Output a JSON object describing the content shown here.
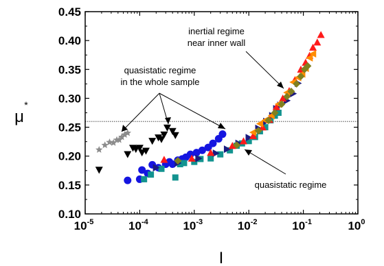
{
  "chart_data": {
    "type": "scatter",
    "title": "",
    "xlabel": "I",
    "ylabel_base": "μ",
    "ylabel_sup": "*",
    "x_scale": "log",
    "xlim": [
      1e-05,
      1
    ],
    "ylim": [
      0.1,
      0.45
    ],
    "x_ticks": [
      {
        "base": "10",
        "exp": "-5",
        "value": 1e-05
      },
      {
        "base": "10",
        "exp": "-4",
        "value": 0.0001
      },
      {
        "base": "10",
        "exp": "-3",
        "value": 0.001
      },
      {
        "base": "10",
        "exp": "-2",
        "value": 0.01
      },
      {
        "base": "10",
        "exp": "-1",
        "value": 0.1
      },
      {
        "base": "10",
        "exp": "0",
        "value": 1
      }
    ],
    "y_ticks": [
      "0.10",
      "0.15",
      "0.20",
      "0.25",
      "0.30",
      "0.35",
      "0.40",
      "0.45"
    ],
    "reference_line": {
      "y": 0.26,
      "style": "dotted"
    },
    "grid": false,
    "colors": {
      "gray": "#8c8c8c",
      "black": "#000000",
      "blue": "#1515e0",
      "teal": "#13938f",
      "navy": "#1a1a80",
      "red": "#ff1a1a",
      "orange": "#ff8c00",
      "olive": "#808020"
    },
    "annotations": [
      {
        "id": "quasistatic-whole",
        "lines": [
          "quasistatic regime",
          "in the whole sample"
        ]
      },
      {
        "id": "inertial",
        "lines": [
          "inertial regime",
          "near inner wall"
        ]
      },
      {
        "id": "quasistatic",
        "lines": [
          "quasistatic regime"
        ]
      }
    ],
    "series": [
      {
        "marker": "star",
        "color": "gray",
        "points": [
          [
            1.8e-05,
            0.211
          ],
          [
            2.3e-05,
            0.219
          ],
          [
            2.8e-05,
            0.224
          ],
          [
            3.3e-05,
            0.223
          ],
          [
            3.8e-05,
            0.228
          ],
          [
            4.2e-05,
            0.228
          ],
          [
            4.7e-05,
            0.233
          ],
          [
            5.3e-05,
            0.237
          ],
          [
            6e-05,
            0.24
          ]
        ]
      },
      {
        "marker": "triangle-down",
        "color": "black",
        "points": [
          [
            1.8e-05,
            0.176
          ],
          [
            6e-05,
            0.203
          ],
          [
            7.5e-05,
            0.214
          ],
          [
            8.5e-05,
            0.212
          ],
          [
            0.0001,
            0.214
          ],
          [
            0.00011,
            0.206
          ],
          [
            0.00013,
            0.209
          ],
          [
            0.00017,
            0.226
          ],
          [
            0.00022,
            0.232
          ],
          [
            0.00025,
            0.229
          ],
          [
            0.00028,
            0.237
          ],
          [
            0.00032,
            0.249
          ],
          [
            0.0004,
            0.243
          ],
          [
            0.00045,
            0.236
          ]
        ]
      },
      {
        "marker": "circle",
        "color": "blue",
        "points": [
          [
            6e-05,
            0.158
          ],
          [
            0.0001,
            0.16
          ],
          [
            0.00011,
            0.176
          ],
          [
            0.00014,
            0.17
          ],
          [
            0.00017,
            0.185
          ],
          [
            0.00022,
            0.18
          ],
          [
            0.0003,
            0.186
          ],
          [
            0.00035,
            0.19
          ],
          [
            0.0004,
            0.186
          ],
          [
            0.0005,
            0.193
          ],
          [
            0.0006,
            0.195
          ],
          [
            0.0007,
            0.198
          ],
          [
            0.00085,
            0.203
          ],
          [
            0.0011,
            0.206
          ],
          [
            0.0014,
            0.21
          ],
          [
            0.0018,
            0.215
          ],
          [
            0.0022,
            0.222
          ],
          [
            0.0028,
            0.23
          ],
          [
            0.0033,
            0.238
          ]
        ]
      },
      {
        "marker": "square",
        "color": "teal",
        "points": [
          [
            0.00012,
            0.16
          ],
          [
            0.00016,
            0.168
          ],
          [
            0.00025,
            0.178
          ],
          [
            0.00045,
            0.163
          ],
          [
            0.00055,
            0.186
          ],
          [
            0.00065,
            0.188
          ],
          [
            0.001,
            0.19
          ],
          [
            0.0013,
            0.195
          ],
          [
            0.002,
            0.196
          ],
          [
            0.003,
            0.203
          ],
          [
            0.0045,
            0.21
          ],
          [
            0.006,
            0.218
          ],
          [
            0.0075,
            0.222
          ],
          [
            0.01,
            0.226
          ],
          [
            0.013,
            0.233
          ],
          [
            0.016,
            0.243
          ],
          [
            0.02,
            0.25
          ],
          [
            0.025,
            0.262
          ],
          [
            0.03,
            0.27
          ],
          [
            0.035,
            0.275
          ]
        ]
      },
      {
        "marker": "triangle-right",
        "color": "navy",
        "points": [
          [
            0.0002,
            0.18
          ],
          [
            0.0005,
            0.188
          ],
          [
            0.0012,
            0.196
          ],
          [
            0.0025,
            0.205
          ],
          [
            0.004,
            0.212
          ],
          [
            0.0065,
            0.222
          ],
          [
            0.01,
            0.232
          ],
          [
            0.015,
            0.248
          ],
          [
            0.021,
            0.26
          ],
          [
            0.027,
            0.27
          ],
          [
            0.032,
            0.282
          ],
          [
            0.038,
            0.288
          ],
          [
            0.05,
            0.296
          ],
          [
            0.065,
            0.308
          ],
          [
            0.08,
            0.326
          ]
        ]
      },
      {
        "marker": "triangle-up",
        "color": "red",
        "points": [
          [
            0.00028,
            0.194
          ],
          [
            0.0009,
            0.196
          ],
          [
            0.002,
            0.206
          ],
          [
            0.005,
            0.218
          ],
          [
            0.008,
            0.226
          ],
          [
            0.012,
            0.235
          ],
          [
            0.018,
            0.25
          ],
          [
            0.024,
            0.263
          ],
          [
            0.032,
            0.285
          ],
          [
            0.042,
            0.3
          ],
          [
            0.055,
            0.313
          ],
          [
            0.07,
            0.332
          ],
          [
            0.09,
            0.35
          ],
          [
            0.11,
            0.362
          ],
          [
            0.13,
            0.374
          ],
          [
            0.15,
            0.388
          ],
          [
            0.18,
            0.397
          ],
          [
            0.21,
            0.41
          ]
        ]
      },
      {
        "marker": "triangle-left",
        "color": "orange",
        "points": [
          [
            0.012,
            0.241
          ],
          [
            0.016,
            0.256
          ],
          [
            0.02,
            0.262
          ],
          [
            0.026,
            0.27
          ],
          [
            0.035,
            0.29
          ],
          [
            0.05,
            0.31
          ],
          [
            0.065,
            0.328
          ],
          [
            0.08,
            0.336
          ],
          [
            0.095,
            0.342
          ],
          [
            0.11,
            0.352
          ],
          [
            0.13,
            0.37
          ],
          [
            0.15,
            0.377
          ]
        ]
      },
      {
        "marker": "diamond",
        "color": "olive",
        "points": [
          [
            0.0005,
            0.192
          ],
          [
            0.006,
            0.219
          ],
          [
            0.015,
            0.244
          ],
          [
            0.023,
            0.262
          ],
          [
            0.03,
            0.275
          ],
          [
            0.04,
            0.29
          ],
          [
            0.05,
            0.303
          ],
          [
            0.06,
            0.312
          ],
          [
            0.075,
            0.325
          ],
          [
            0.09,
            0.338
          ],
          [
            0.105,
            0.35
          ],
          [
            0.12,
            0.356
          ]
        ]
      }
    ]
  }
}
